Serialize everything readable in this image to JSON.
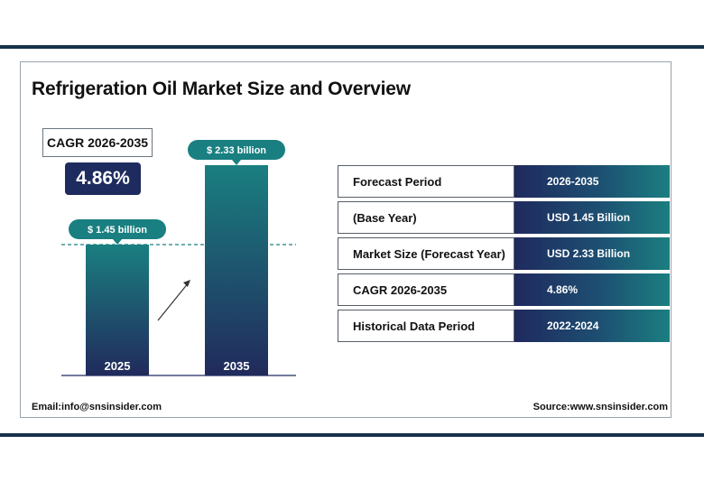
{
  "header": {
    "title": "Refrigeration Oil Market Size and Overview"
  },
  "cagr": {
    "label": "CAGR 2026-2035",
    "value": "4.86%"
  },
  "chart_data": {
    "type": "bar",
    "categories": [
      "2025",
      "2035"
    ],
    "values": [
      1.45,
      2.33
    ],
    "value_labels": [
      "$ 1.45 billion",
      "$ 2.33 billion"
    ],
    "unit": "USD billion",
    "reference_line_value": 1.45,
    "colors": {
      "bar_top": "#1a7f80",
      "bar_bottom": "#212a5c",
      "callout": "#1a7f80"
    }
  },
  "table": {
    "rows": [
      {
        "label": "Forecast Period",
        "value": "2026-2035"
      },
      {
        "label": "(Base Year)",
        "value": "USD 1.45 Billion"
      },
      {
        "label": "Market Size (Forecast Year)",
        "value": "USD 2.33 Billion"
      },
      {
        "label": "CAGR 2026-2035",
        "value": "4.86%"
      },
      {
        "label": "Historical Data Period",
        "value": "2022-2024"
      }
    ]
  },
  "footer": {
    "email": "Email:info@snsinsider.com",
    "source": "Source:www.snsinsider.com"
  }
}
